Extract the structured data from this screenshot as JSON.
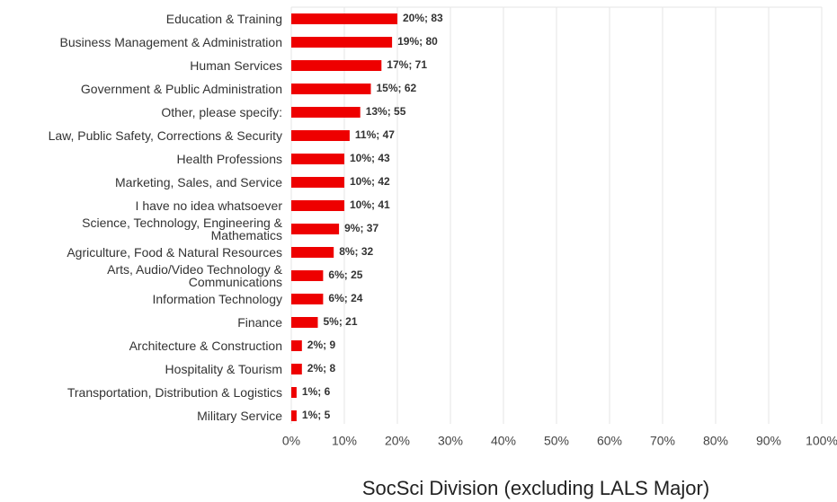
{
  "chart_data": {
    "type": "bar",
    "orientation": "horizontal",
    "title": "SocSci Division (excluding LALS Major)",
    "categories": [
      "Education & Training",
      "Business Management & Administration",
      "Human Services",
      "Government & Public Administration",
      "Other, please specify:",
      "Law, Public Safety, Corrections & Security",
      "Health Professions",
      "Marketing, Sales, and Service",
      "I have no idea whatsoever",
      "Science, Technology, Engineering & Mathematics",
      "Agriculture, Food & Natural Resources",
      "Arts, Audio/Video Technology & Communications",
      "Information Technology",
      "Finance",
      "Architecture & Construction",
      "Hospitality & Tourism",
      "Transportation, Distribution & Logistics",
      "Military Service"
    ],
    "values": [
      20,
      19,
      17,
      15,
      13,
      11,
      10,
      10,
      10,
      9,
      8,
      6,
      6,
      5,
      2,
      2,
      1,
      1
    ],
    "value_labels": [
      "20%; 83",
      "19%; 80",
      "17%; 71",
      "15%; 62",
      "13%; 55",
      "11%; 47",
      "10%; 43",
      "10%; 42",
      "10%; 41",
      "9%; 37",
      "8%; 32",
      "6%; 25",
      "6%; 24",
      "5%; 21",
      "2%; 9",
      "2%; 8",
      "1%; 6",
      "1%; 5"
    ],
    "color": "#ee0000",
    "xlim": [
      0,
      100
    ],
    "xticks": [
      {
        "value": 0,
        "label": "0%"
      },
      {
        "value": 10,
        "label": "10%"
      },
      {
        "value": 20,
        "label": "20%"
      },
      {
        "value": 30,
        "label": "30%"
      },
      {
        "value": 40,
        "label": "40%"
      },
      {
        "value": 50,
        "label": "50%"
      },
      {
        "value": 60,
        "label": "60%"
      },
      {
        "value": 70,
        "label": "70%"
      },
      {
        "value": 80,
        "label": "80%"
      },
      {
        "value": 90,
        "label": "90%"
      },
      {
        "value": 100,
        "label": "100%"
      }
    ],
    "grid": true
  }
}
